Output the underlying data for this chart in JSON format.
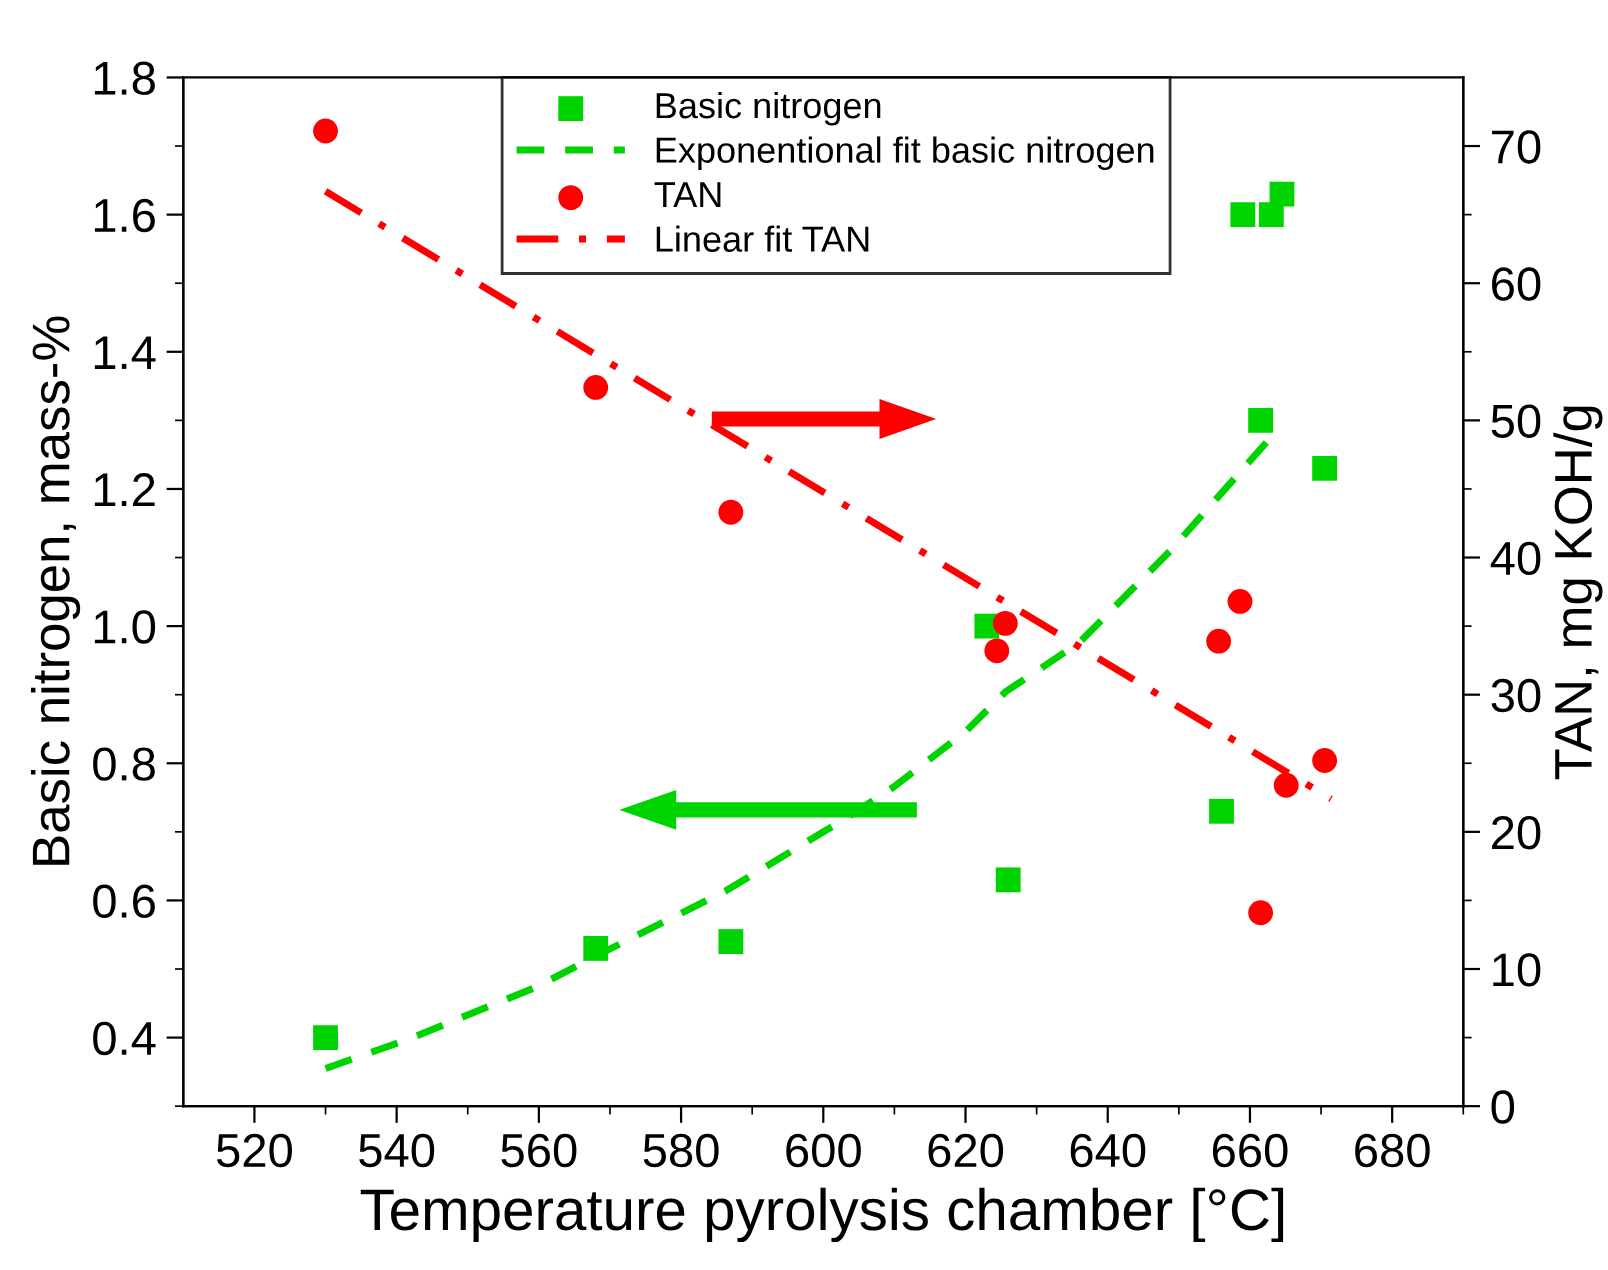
{
  "chart_data": {
    "type": "scatter",
    "xlabel": "Temperature pyrolysis chamber [°C]",
    "ylabel": "Basic nitrogen, mass-%",
    "y2label": "TAN, mg KOH/g",
    "xlim": [
      510,
      690
    ],
    "xticks": [
      520,
      540,
      560,
      580,
      600,
      620,
      640,
      660,
      680
    ],
    "ylim": [
      0.3,
      1.8
    ],
    "yticks": [
      {
        "value": 0.4,
        "label": "0.4"
      },
      {
        "value": 0.6,
        "label": "0.6"
      },
      {
        "value": 0.8,
        "label": "0.8"
      },
      {
        "value": 1.0,
        "label": "1.0"
      },
      {
        "value": 1.2,
        "label": "1.2"
      },
      {
        "value": 1.4,
        "label": "1.4"
      },
      {
        "value": 1.6,
        "label": "1.6"
      },
      {
        "value": 1.8,
        "label": "1.8"
      }
    ],
    "y2lim": [
      0,
      75
    ],
    "y2ticks": [
      0,
      10,
      20,
      30,
      40,
      50,
      60,
      70
    ],
    "grid": false,
    "legend": "top",
    "series": [
      {
        "name": "Basic nitrogen",
        "marker": "square",
        "color": "#00d400",
        "x": [
          530,
          568,
          587,
          623,
          626,
          656,
          659,
          663,
          664.5,
          661.5,
          670.5
        ],
        "values": [
          0.4,
          0.53,
          0.54,
          1.0,
          0.63,
          0.73,
          1.6,
          1.6,
          1.63,
          1.3,
          1.23
        ]
      },
      {
        "name": "Exponentional fit basic nitrogen",
        "type": "line",
        "line_style": "dashed",
        "marker": "none",
        "color": "#00d400",
        "x": [
          530,
          541.5,
          559.7,
          568.6,
          586.3,
          603.2,
          609.7,
          620,
          625.6,
          636,
          649,
          663
        ],
        "values": [
          0.355,
          0.397,
          0.474,
          0.522,
          0.614,
          0.72,
          0.764,
          0.846,
          0.904,
          0.976,
          1.112,
          1.276
        ]
      },
      {
        "name": "TAN",
        "marker": "circle",
        "axis": "y2",
        "color": "#ff0000",
        "x": [
          530,
          568,
          587,
          624.4,
          625.6,
          655.6,
          658.6,
          661.5,
          665.1,
          670.5
        ],
        "values": [
          71.1,
          52.4,
          43.3,
          33.2,
          35.2,
          33.9,
          36.8,
          14.1,
          23.4,
          25.2
        ]
      },
      {
        "name": "Linear fit TAN",
        "type": "line",
        "line_style": "dashdot",
        "marker": "none",
        "axis": "y2",
        "color": "#ff0000",
        "x": [
          530,
          671.4
        ],
        "values": [
          66.7,
          22.4
        ]
      }
    ]
  }
}
